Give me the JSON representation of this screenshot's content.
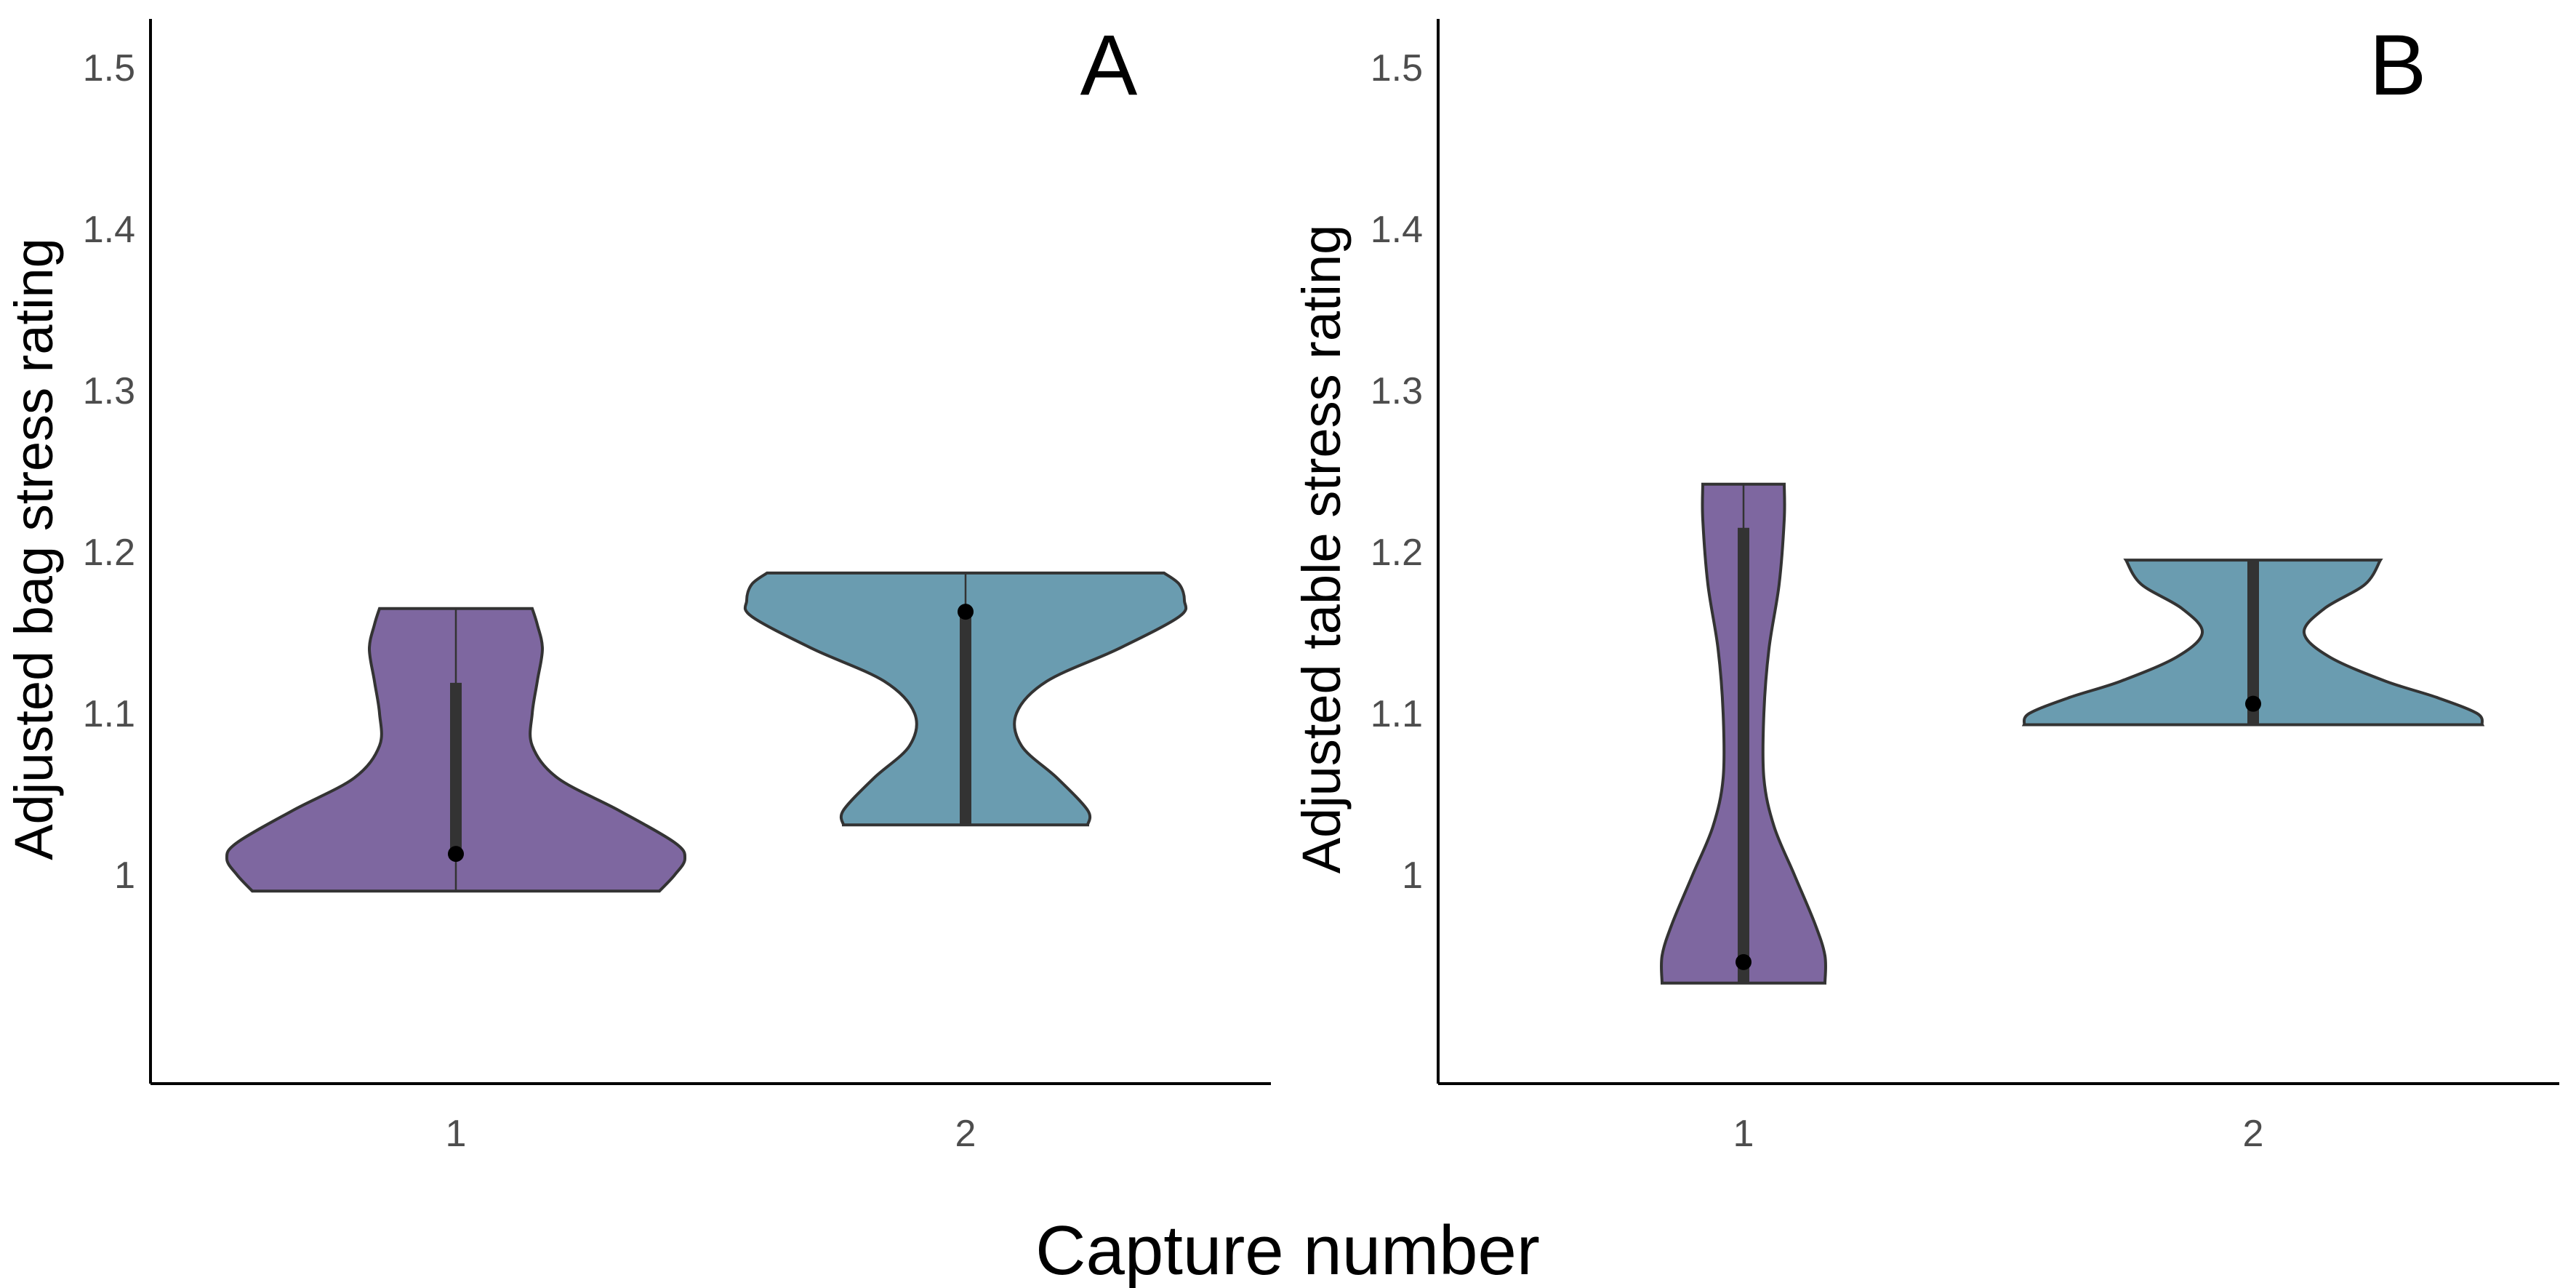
{
  "figure": {
    "shared_xlabel": "Capture number"
  },
  "colors": {
    "group_1": "#7E67A0",
    "group_2": "#6A9CB0",
    "outline": "#333333",
    "tick_text": "#4d4d4d"
  },
  "chart_data": [
    {
      "type": "violin",
      "panel_label": "A",
      "ylabel": "Adjusted bag stress rating",
      "xlabel": "",
      "categories": [
        "1",
        "2"
      ],
      "yticks": [
        "1",
        "1.1",
        "1.2",
        "1.3",
        "1.4",
        "1.5"
      ],
      "ytick_values": [
        1.0,
        1.1,
        1.2,
        1.3,
        1.4,
        1.5
      ],
      "ylim": [
        0.87,
        1.53
      ],
      "grid": false,
      "violins": [
        {
          "category": "1",
          "color": "group_1",
          "density": [
            [
              0.99,
              0.4
            ],
            [
              1.0,
              0.43
            ],
            [
              1.01,
              0.45
            ],
            [
              1.02,
              0.43
            ],
            [
              1.04,
              0.32
            ],
            [
              1.06,
              0.2
            ],
            [
              1.08,
              0.15
            ],
            [
              1.1,
              0.15
            ],
            [
              1.12,
              0.16
            ],
            [
              1.14,
              0.17
            ],
            [
              1.155,
              0.16
            ],
            [
              1.165,
              0.15
            ]
          ],
          "iqr": [
            1.013,
            1.119
          ],
          "mean": 1.013
        },
        {
          "category": "2",
          "color": "group_2",
          "density": [
            [
              1.031,
              0.24
            ],
            [
              1.04,
              0.24
            ],
            [
              1.06,
              0.18
            ],
            [
              1.08,
              0.11
            ],
            [
              1.1,
              0.1
            ],
            [
              1.12,
              0.16
            ],
            [
              1.14,
              0.3
            ],
            [
              1.16,
              0.42
            ],
            [
              1.17,
              0.43
            ],
            [
              1.18,
              0.42
            ],
            [
              1.187,
              0.39
            ]
          ],
          "iqr": [
            1.031,
            1.163
          ],
          "mean": 1.163
        }
      ]
    },
    {
      "type": "violin",
      "panel_label": "B",
      "ylabel": "Adjusted table stress rating",
      "xlabel": "",
      "categories": [
        "1",
        "2"
      ],
      "yticks": [
        "1",
        "1.1",
        "1.2",
        "1.3",
        "1.4",
        "1.5"
      ],
      "ytick_values": [
        1.0,
        1.1,
        1.2,
        1.3,
        1.4,
        1.5
      ],
      "ylim": [
        0.87,
        1.53
      ],
      "grid": false,
      "violins": [
        {
          "category": "1",
          "color": "group_1",
          "density": [
            [
              0.933,
              0.16
            ],
            [
              0.95,
              0.16
            ],
            [
              0.97,
              0.14
            ],
            [
              1.0,
              0.1
            ],
            [
              1.03,
              0.06
            ],
            [
              1.06,
              0.04
            ],
            [
              1.1,
              0.04
            ],
            [
              1.14,
              0.05
            ],
            [
              1.18,
              0.07
            ],
            [
              1.22,
              0.08
            ],
            [
              1.242,
              0.08
            ]
          ],
          "iqr": [
            0.933,
            1.215
          ],
          "mean": 0.946
        },
        {
          "category": "2",
          "color": "group_2",
          "density": [
            [
              1.093,
              0.45
            ],
            [
              1.1,
              0.44
            ],
            [
              1.11,
              0.36
            ],
            [
              1.12,
              0.26
            ],
            [
              1.135,
              0.15
            ],
            [
              1.15,
              0.1
            ],
            [
              1.165,
              0.14
            ],
            [
              1.18,
              0.22
            ],
            [
              1.195,
              0.25
            ]
          ],
          "iqr": [
            1.093,
            1.195
          ],
          "mean": 1.106
        }
      ]
    }
  ]
}
